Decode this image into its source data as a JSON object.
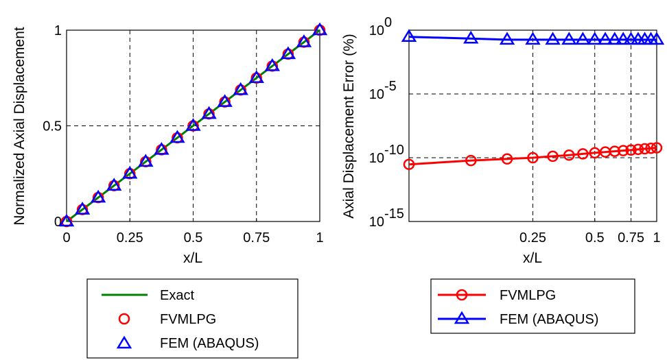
{
  "chart_data": [
    {
      "type": "line",
      "xlabel": "x/L",
      "ylabel": "Normalized Axial Displacement",
      "xlim": [
        0,
        1
      ],
      "ylim": [
        0,
        1
      ],
      "grid": true,
      "x_ticks": [
        0,
        0.25,
        0.5,
        0.75,
        1
      ],
      "x_tick_labels": [
        "0",
        "0.25",
        "0.5",
        "0.75",
        "1"
      ],
      "y_ticks": [
        0,
        0.5,
        1
      ],
      "y_tick_labels": [
        "0",
        "0.5",
        "1"
      ],
      "legend_position": "below",
      "series": [
        {
          "name": "Exact",
          "style": "line",
          "color": "#008000",
          "x": [
            0,
            1
          ],
          "y": [
            0,
            1
          ]
        },
        {
          "name": "FVMLPG",
          "style": "circle-markers",
          "color": "#ff0000",
          "x": [
            0,
            0.0625,
            0.125,
            0.1875,
            0.25,
            0.3125,
            0.375,
            0.4375,
            0.5,
            0.5625,
            0.625,
            0.6875,
            0.75,
            0.8125,
            0.875,
            0.9375,
            1
          ],
          "y": [
            0,
            0.0625,
            0.125,
            0.1875,
            0.25,
            0.3125,
            0.375,
            0.4375,
            0.5,
            0.5625,
            0.625,
            0.6875,
            0.75,
            0.8125,
            0.875,
            0.9375,
            1
          ]
        },
        {
          "name": "FEM (ABAQUS)",
          "style": "triangle-markers",
          "color": "#0000ff",
          "x": [
            0,
            0.0625,
            0.125,
            0.1875,
            0.25,
            0.3125,
            0.375,
            0.4375,
            0.5,
            0.5625,
            0.625,
            0.6875,
            0.75,
            0.8125,
            0.875,
            0.9375,
            1
          ],
          "y": [
            0,
            0.0625,
            0.125,
            0.1875,
            0.25,
            0.3125,
            0.375,
            0.4375,
            0.5,
            0.5625,
            0.625,
            0.6875,
            0.75,
            0.8125,
            0.875,
            0.9375,
            1
          ]
        }
      ]
    },
    {
      "type": "line",
      "xlabel": "x/L",
      "ylabel": "Axial Displacement Error (%)",
      "xscale": "log",
      "yscale": "log",
      "xlim": [
        0.0625,
        1
      ],
      "ylim": [
        1e-15,
        1
      ],
      "grid": true,
      "x_ticks": [
        0.25,
        0.5,
        0.75,
        1
      ],
      "x_tick_labels": [
        "0.25",
        "0.5",
        "0.75",
        "1"
      ],
      "y_ticks": [
        1e-15,
        1e-10,
        1e-05,
        1
      ],
      "y_tick_labels": [
        {
          "base": "10",
          "exp": "-15"
        },
        {
          "base": "10",
          "exp": "-10"
        },
        {
          "base": "10",
          "exp": "-5"
        },
        {
          "base": "10",
          "exp": "0"
        }
      ],
      "legend_position": "below",
      "series": [
        {
          "name": "FVMLPG",
          "style": "line-circle",
          "color": "#ff0000",
          "x": [
            0.0625,
            0.125,
            0.1875,
            0.25,
            0.3125,
            0.375,
            0.4375,
            0.5,
            0.5625,
            0.625,
            0.6875,
            0.75,
            0.8125,
            0.875,
            0.9375,
            1
          ],
          "y": [
            3e-11,
            6e-11,
            8e-11,
            1e-10,
            1.3e-10,
            1.6e-10,
            2e-10,
            2.4e-10,
            2.8e-10,
            3.2e-10,
            3.6e-10,
            4e-10,
            4.5e-10,
            5e-10,
            5.5e-10,
            6e-10
          ]
        },
        {
          "name": "FEM (ABAQUS)",
          "style": "line-triangle",
          "color": "#0000ff",
          "x": [
            0.0625,
            0.125,
            0.1875,
            0.25,
            0.3125,
            0.375,
            0.4375,
            0.5,
            0.5625,
            0.625,
            0.6875,
            0.75,
            0.8125,
            0.875,
            0.9375,
            1
          ],
          "y": [
            0.3,
            0.22,
            0.18,
            0.18,
            0.18,
            0.18,
            0.18,
            0.18,
            0.18,
            0.18,
            0.18,
            0.18,
            0.18,
            0.18,
            0.18,
            0.18
          ]
        }
      ]
    }
  ]
}
